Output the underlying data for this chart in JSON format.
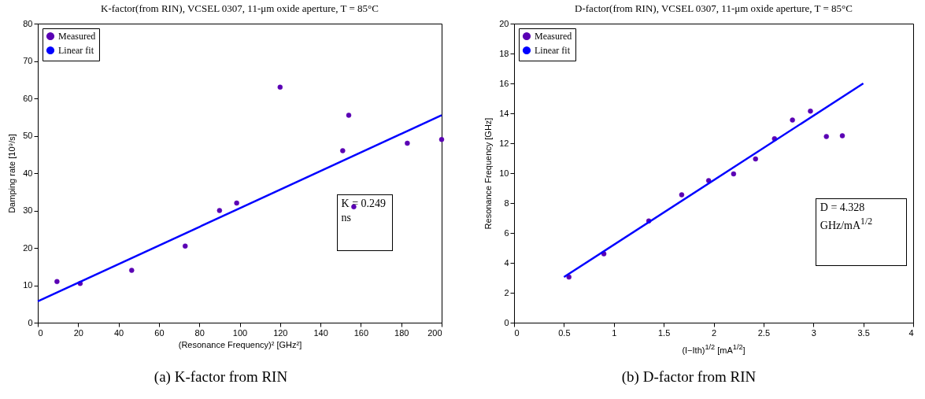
{
  "chart_data": [
    {
      "type": "scatter",
      "title": "K-factor(from RIN), VCSEL 0307, 11-μm oxide aperture, T = 85°C",
      "xlabel": "(Resonance Frequency)² [GHz²]",
      "ylabel": "Damping rate [10⁹/s]",
      "xlim": [
        0,
        200
      ],
      "xticks": [
        0,
        20,
        40,
        60,
        80,
        100,
        120,
        140,
        160,
        180,
        200
      ],
      "ylim": [
        0,
        80
      ],
      "yticks": [
        0,
        10,
        20,
        30,
        40,
        50,
        60,
        70,
        80
      ],
      "legend": "top left",
      "annotations": [
        "K = 0.249 ns",
        "(a) K-factor from RIN"
      ],
      "series": [
        {
          "name": "Measured",
          "type": "scatter",
          "marker": "circle",
          "color": "#5a00b4",
          "x": [
            9.5,
            21,
            46.5,
            73,
            90,
            98.5,
            120,
            151,
            154,
            156.5,
            183,
            200
          ],
          "values": [
            11,
            10.5,
            14,
            20.5,
            30,
            32,
            63,
            46,
            55.5,
            31,
            48,
            49
          ]
        },
        {
          "name": "Linear fit",
          "type": "line",
          "color": "#0000ff",
          "x": [
            0,
            200
          ],
          "values": [
            5.7,
            55.5
          ]
        }
      ]
    },
    {
      "type": "scatter",
      "title": "D-factor(from RIN), VCSEL 0307, 11-μm oxide aperture, T = 85°C",
      "xlabel": "(I−Ith)$^{1/2}$ [mA$^{1/2}$]",
      "ylabel": "Resonance Frequency [GHz]",
      "xlim": [
        0,
        4
      ],
      "xticks": [
        0,
        0.5,
        1,
        1.5,
        2,
        2.5,
        3,
        3.5,
        4
      ],
      "ylim": [
        0,
        20
      ],
      "yticks": [
        0,
        2,
        4,
        6,
        8,
        10,
        12,
        14,
        16,
        18,
        20
      ],
      "legend": "top left",
      "annotations": [
        "D = 4.328 GHz/mA$^{1/2}$",
        "(b) D-factor from RIN"
      ],
      "series": [
        {
          "name": "Measured",
          "type": "scatter",
          "marker": "circle",
          "color": "#5a00b4",
          "x": [
            0.55,
            0.9,
            1.35,
            1.68,
            1.95,
            2.2,
            2.42,
            2.61,
            2.79,
            2.97,
            3.13,
            3.29
          ],
          "values": [
            3.05,
            4.6,
            6.8,
            8.55,
            9.5,
            9.95,
            10.95,
            12.3,
            13.55,
            14.15,
            12.45,
            12.5
          ]
        },
        {
          "name": "Linear fit",
          "type": "line",
          "color": "#0000ff",
          "x": [
            0.5,
            3.5
          ],
          "values": [
            3.05,
            16
          ]
        }
      ]
    }
  ]
}
